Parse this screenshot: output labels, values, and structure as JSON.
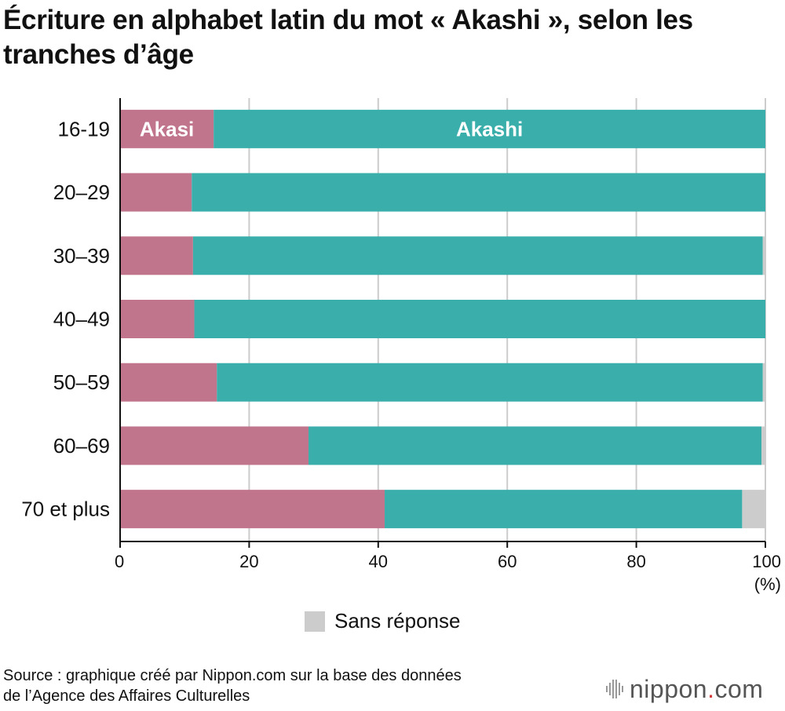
{
  "title": "Écriture en alphabet latin du mot « Akashi », selon les tranches d’âge",
  "colors": {
    "akasi": "#c0758c",
    "akashi": "#3aaeab",
    "sans_reponse": "#cccccc",
    "grid": "#cccccc"
  },
  "chart_data": {
    "type": "bar",
    "orientation": "horizontal",
    "stacked": true,
    "categories": [
      "16-19",
      "20–29",
      "30–39",
      "40–49",
      "50–59",
      "60–69",
      "70 et plus"
    ],
    "series": [
      {
        "name": "Akasi",
        "values": [
          14.5,
          11.1,
          11.3,
          11.5,
          15.0,
          29.2,
          41.0
        ]
      },
      {
        "name": "Akashi",
        "values": [
          85.5,
          88.9,
          88.3,
          88.5,
          84.6,
          70.2,
          55.4
        ]
      },
      {
        "name": "Sans réponse",
        "values": [
          0.0,
          0.0,
          0.4,
          0.0,
          0.4,
          0.6,
          3.6
        ]
      }
    ],
    "xlim": [
      0,
      100
    ],
    "xticks": [
      "0",
      "20",
      "40",
      "60",
      "80",
      "100"
    ],
    "xunit": "(%)",
    "grid": true
  },
  "legend": {
    "label": "Sans réponse"
  },
  "source": {
    "line1": "Source : graphique créé par Nippon.com sur la base des données",
    "line2": "de l’Agence des Affaires Culturelles"
  },
  "brand": {
    "name": "nippon",
    "dot": ".",
    "suffix": "com"
  }
}
